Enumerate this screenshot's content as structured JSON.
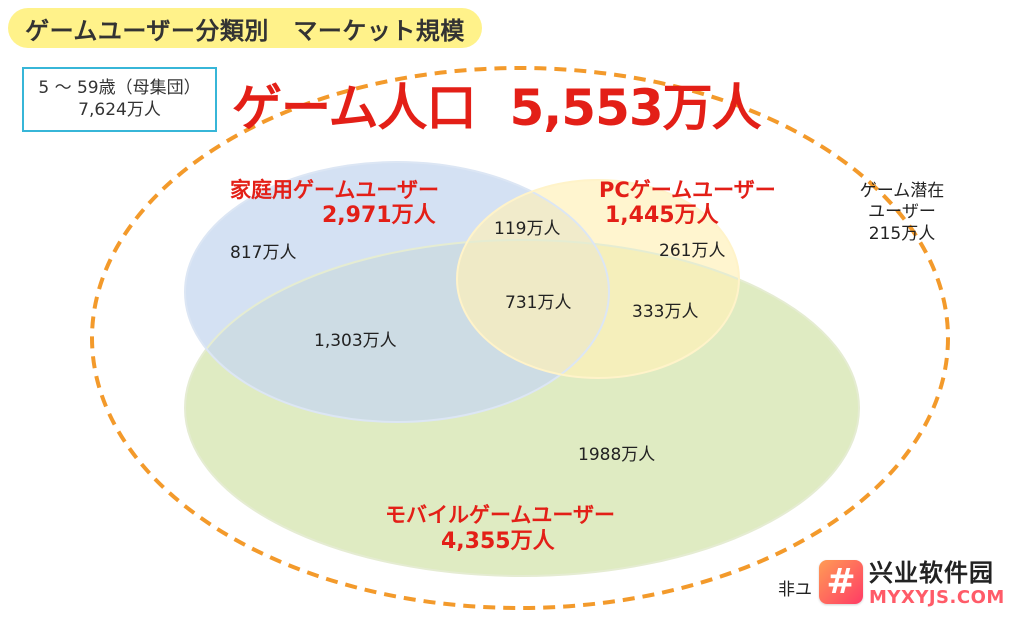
{
  "header": {
    "title": "ゲームユーザー分類別　マーケット規模"
  },
  "base_population": {
    "line1": "5 ～ 59歳（母集団）",
    "line2": "7,624万人"
  },
  "game_population": {
    "label": "ゲーム人口",
    "value": "5,553万人"
  },
  "groups": {
    "home": {
      "name": "家庭用ゲームユーザー",
      "total": "2,971万人",
      "color": "#c9d8ef"
    },
    "pc": {
      "name": "PCゲームユーザー",
      "total": "1,445万人",
      "color": "#fff0b8"
    },
    "mobile": {
      "name": "モバイルゲームユーザー",
      "total": "4,355万人",
      "color": "#d8e6b5"
    },
    "potential": {
      "line1": "ゲーム潜在",
      "line2": "ユーザー",
      "value": "215万人"
    },
    "non_user_partial": "非ユ"
  },
  "segments": {
    "home_only": "817万人",
    "home_pc": "119万人",
    "pc_only": "261万人",
    "all_three": "731万人",
    "pc_mobile": "333万人",
    "home_mobile": "1,303万人",
    "mobile_only": "1988万人"
  },
  "colors": {
    "accent_red": "#e31f17",
    "title_background": "#fff28a",
    "dashed_orange": "#f39a2b",
    "base_border": "#37b6d8"
  },
  "watermark": {
    "text": "兴业软件园",
    "url": "MYXYJS.COM",
    "logo_glyph": "#"
  },
  "icons": {
    "logo": "hash-logo-icon"
  }
}
